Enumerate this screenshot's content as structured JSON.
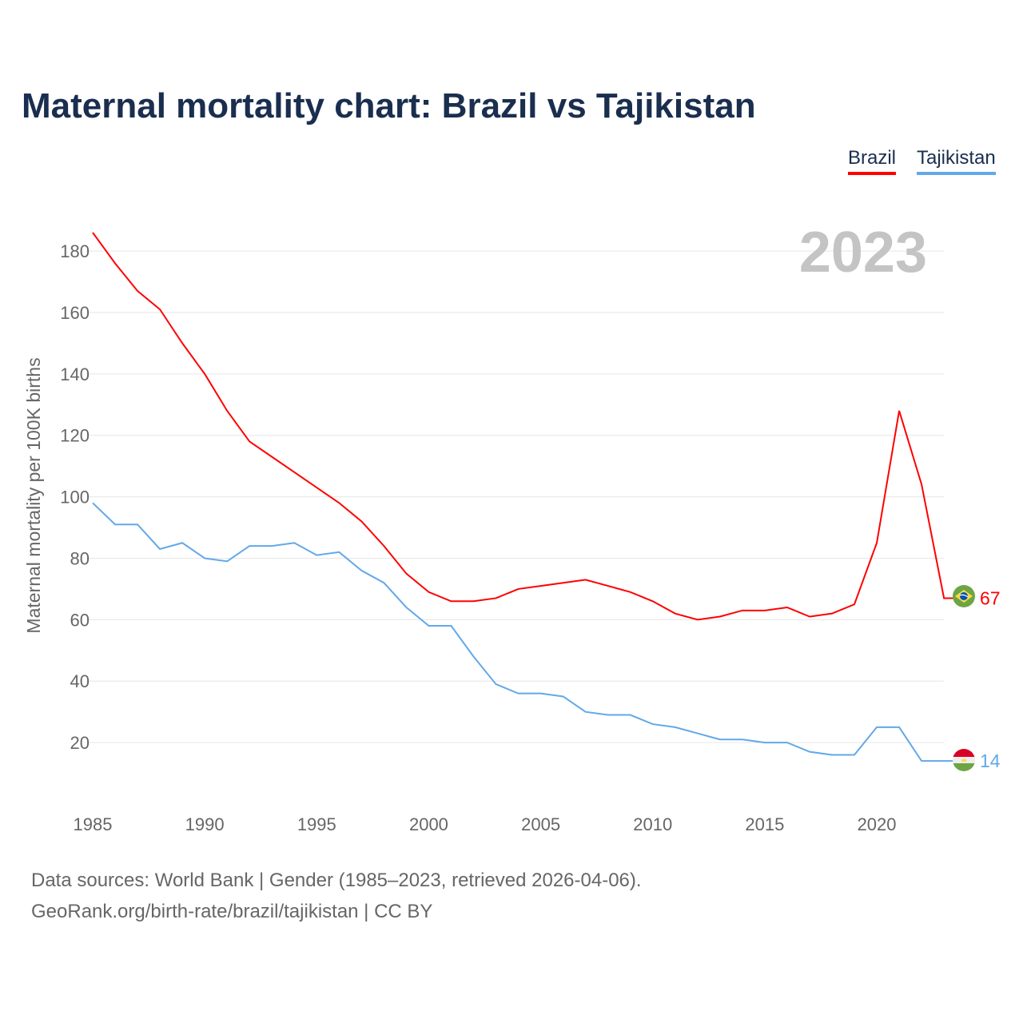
{
  "title": "Maternal mortality chart: Brazil vs Tajikistan",
  "legend": [
    "Brazil",
    "Tajikistan"
  ],
  "year_label": "2023",
  "sources": [
    "Data sources: World Bank | Gender (1985–2023, retrieved 2026-04-06).",
    "GeoRank.org/birth-rate/brazil/tajikistan | CC BY"
  ],
  "chart_data": {
    "type": "line",
    "title": "Maternal mortality chart: Brazil vs Tajikistan",
    "xlabel": "",
    "ylabel": "Maternal mortality per 100K births",
    "xlim": [
      1985,
      2023
    ],
    "ylim": [
      0,
      190
    ],
    "xticks": [
      1985,
      1990,
      1995,
      2000,
      2005,
      2010,
      2015,
      2020
    ],
    "yticks": [
      20,
      40,
      60,
      80,
      100,
      120,
      140,
      160,
      180
    ],
    "grid": true,
    "legend_position": "top-right",
    "x": [
      1985,
      1986,
      1987,
      1988,
      1989,
      1990,
      1991,
      1992,
      1993,
      1994,
      1995,
      1996,
      1997,
      1998,
      1999,
      2000,
      2001,
      2002,
      2003,
      2004,
      2005,
      2006,
      2007,
      2008,
      2009,
      2010,
      2011,
      2012,
      2013,
      2014,
      2015,
      2016,
      2017,
      2018,
      2019,
      2020,
      2021,
      2022,
      2023
    ],
    "series": [
      {
        "name": "Brazil",
        "color": "#ff0000",
        "end_label": "67",
        "values": [
          186,
          176,
          167,
          161,
          150,
          140,
          128,
          118,
          113,
          108,
          103,
          98,
          92,
          84,
          75,
          69,
          66,
          66,
          67,
          70,
          71,
          72,
          73,
          71,
          69,
          66,
          62,
          60,
          61,
          63,
          63,
          64,
          61,
          62,
          65,
          85,
          128,
          104,
          67
        ]
      },
      {
        "name": "Tajikistan",
        "color": "#62a8ea",
        "end_label": "14",
        "values": [
          98,
          91,
          91,
          83,
          85,
          80,
          79,
          84,
          84,
          85,
          81,
          82,
          76,
          72,
          64,
          58,
          58,
          48,
          39,
          36,
          36,
          35,
          30,
          29,
          29,
          26,
          25,
          23,
          21,
          21,
          20,
          20,
          17,
          16,
          16,
          25,
          25,
          14,
          14
        ]
      }
    ]
  }
}
